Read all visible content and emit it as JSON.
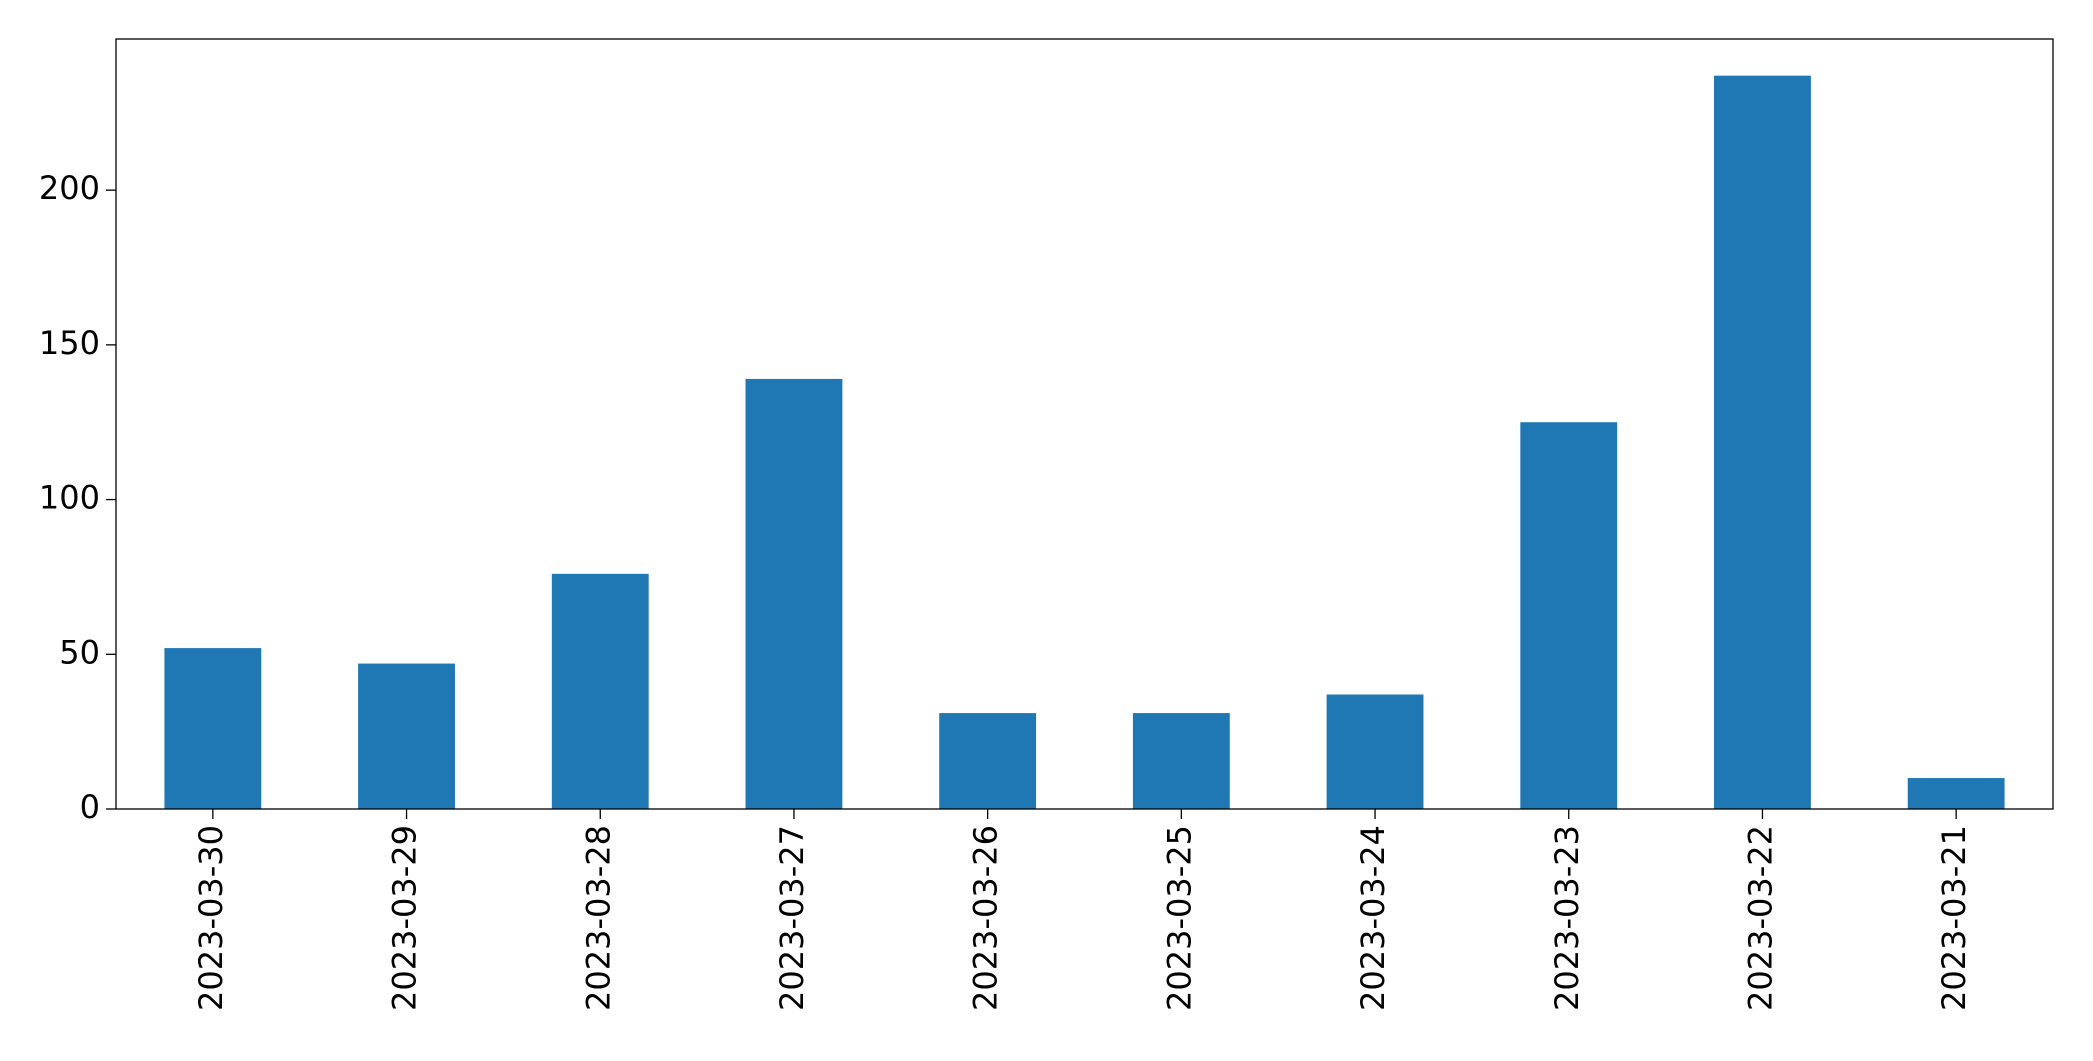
{
  "chart_data": {
    "type": "bar",
    "categories": [
      "2023-03-30",
      "2023-03-29",
      "2023-03-28",
      "2023-03-27",
      "2023-03-26",
      "2023-03-25",
      "2023-03-24",
      "2023-03-23",
      "2023-03-22",
      "2023-03-21"
    ],
    "values": [
      52,
      47,
      76,
      139,
      31,
      31,
      37,
      125,
      237,
      10
    ],
    "color": "#1f77b4",
    "ylim": [
      0,
      248.85
    ],
    "yticks": [
      0,
      50,
      100,
      150,
      200
    ],
    "grid": false
  }
}
